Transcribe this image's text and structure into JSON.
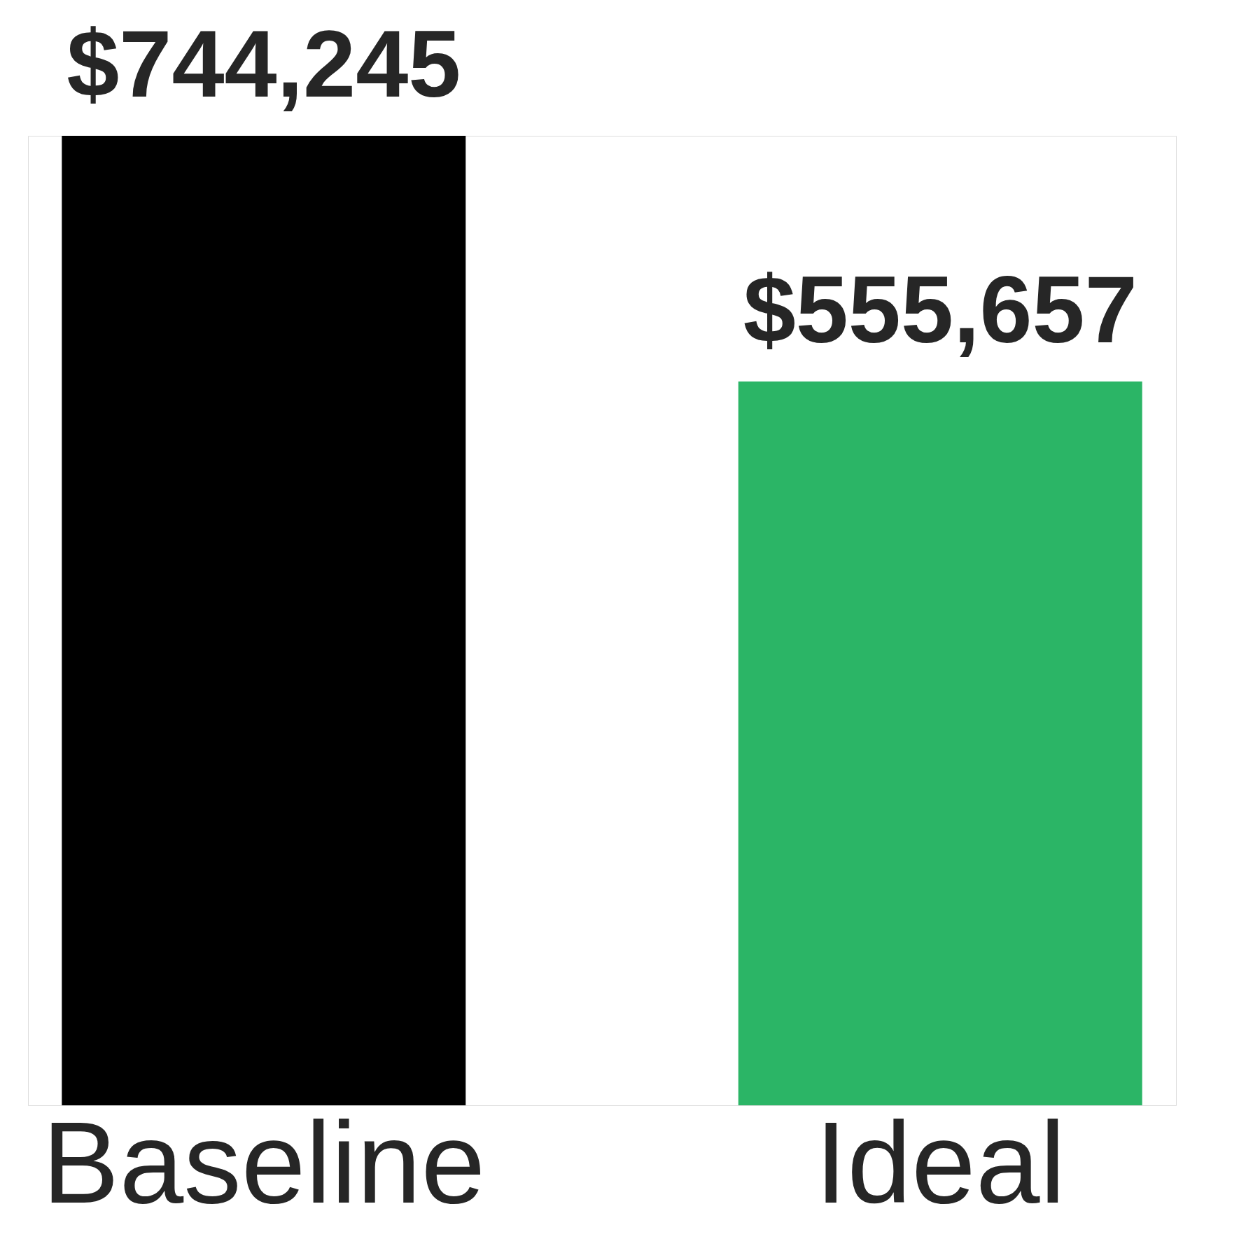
{
  "chart_data": {
    "type": "bar",
    "categories": [
      "Baseline",
      "Ideal"
    ],
    "values": [
      744245,
      555657
    ],
    "colors": [
      "#000000",
      "#2bb566"
    ],
    "value_labels": [
      "$744,245",
      "$555,657"
    ],
    "grid": false
  }
}
